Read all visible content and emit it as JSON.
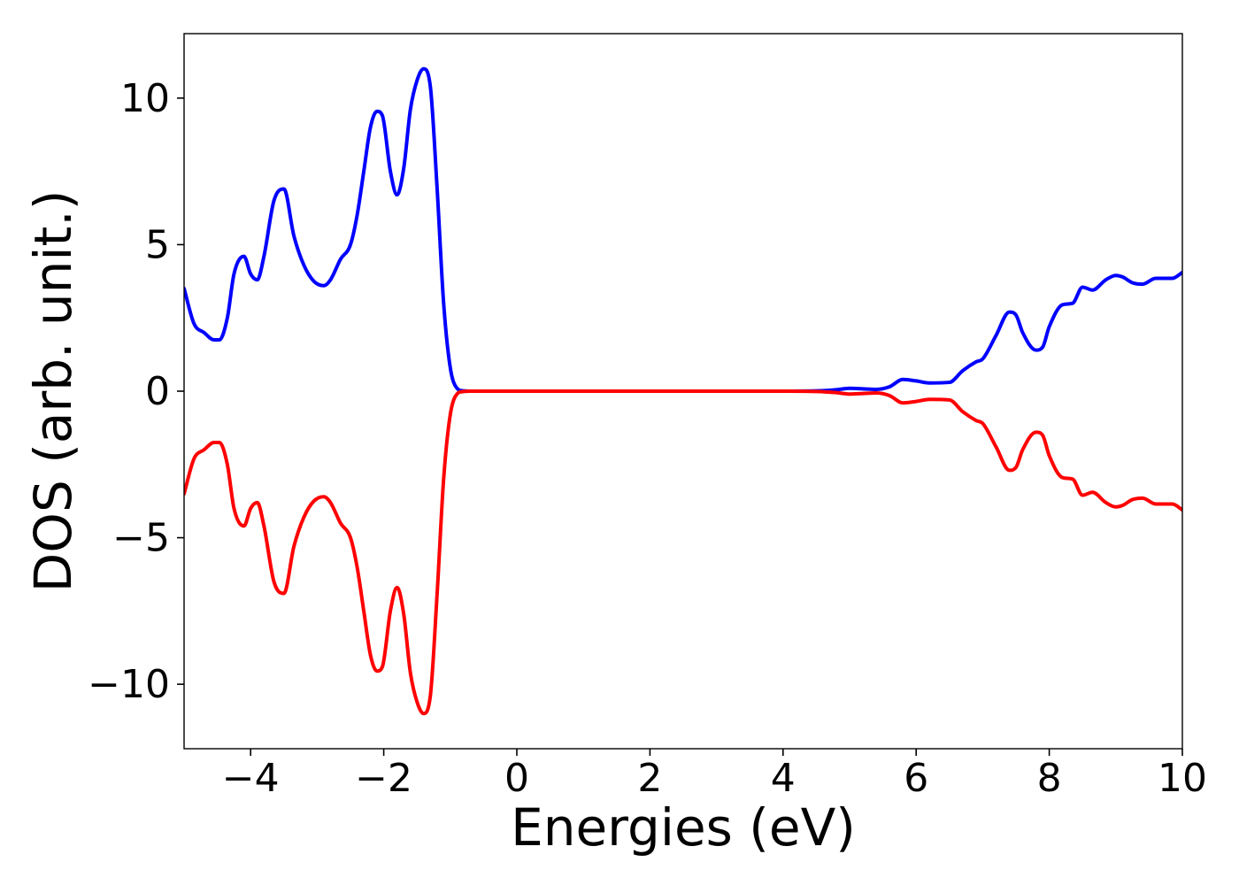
{
  "chart_data": {
    "type": "line",
    "title": "",
    "xlabel": "Energies (eV)",
    "ylabel": "DOS (arb. unit.)",
    "xlim": [
      -5,
      10
    ],
    "ylim": [
      -12.2,
      12.2
    ],
    "xticks": [
      -4,
      -2,
      0,
      2,
      4,
      6,
      8,
      10
    ],
    "xtick_labels": [
      "−4",
      "−2",
      "0",
      "2",
      "4",
      "6",
      "8",
      "10"
    ],
    "yticks": [
      -10,
      -5,
      0,
      5,
      10
    ],
    "ytick_labels": [
      "−10",
      "−5",
      "0",
      "5",
      "10"
    ],
    "grid": false,
    "legend": "none",
    "series": [
      {
        "color": "#0000ff",
        "x": [
          -5.0,
          -4.85,
          -4.7,
          -4.55,
          -4.47,
          -4.35,
          -4.25,
          -4.1,
          -4.0,
          -3.9,
          -3.8,
          -3.65,
          -3.5,
          -3.35,
          -3.2,
          -3.05,
          -2.9,
          -2.8,
          -2.65,
          -2.5,
          -2.4,
          -2.3,
          -2.2,
          -2.1,
          -2.02,
          -1.9,
          -1.8,
          -1.7,
          -1.6,
          -1.5,
          -1.4,
          -1.3,
          -1.2,
          -1.1,
          -1.0,
          -0.9,
          -0.8,
          -0.7,
          -0.6,
          -0.5,
          -0.3,
          0.0,
          1.0,
          2.0,
          3.0,
          4.0,
          4.5,
          4.8,
          5.0,
          5.2,
          5.4,
          5.6,
          5.8,
          6.0,
          6.2,
          6.5,
          6.7,
          6.9,
          7.0,
          7.2,
          7.4,
          7.5,
          7.6,
          7.8,
          7.9,
          8.0,
          8.2,
          8.35,
          8.5,
          8.65,
          8.85,
          9.0,
          9.1,
          9.25,
          9.4,
          9.6,
          9.85,
          10.0
        ],
        "y": [
          3.5,
          2.3,
          2.0,
          1.75,
          1.75,
          2.5,
          4.0,
          4.6,
          4.0,
          3.8,
          4.6,
          6.5,
          6.9,
          5.3,
          4.3,
          3.75,
          3.6,
          3.8,
          4.5,
          5.0,
          6.0,
          7.5,
          9.0,
          9.55,
          9.4,
          7.5,
          6.7,
          7.6,
          9.6,
          10.6,
          11.0,
          10.4,
          7.0,
          3.0,
          0.8,
          0.1,
          0.01,
          0.0,
          0.0,
          0.0,
          0.0,
          0.0,
          0.0,
          0.0,
          0.0,
          0.0,
          0.01,
          0.05,
          0.1,
          0.08,
          0.06,
          0.15,
          0.4,
          0.35,
          0.28,
          0.3,
          0.7,
          1.0,
          1.1,
          1.9,
          2.7,
          2.6,
          2.0,
          1.4,
          1.5,
          2.2,
          2.95,
          3.0,
          3.55,
          3.45,
          3.8,
          3.95,
          3.9,
          3.7,
          3.65,
          3.85,
          3.85,
          4.05
        ]
      },
      {
        "color": "#ff0000",
        "x": [
          -5.0,
          -4.85,
          -4.7,
          -4.55,
          -4.47,
          -4.35,
          -4.25,
          -4.1,
          -4.0,
          -3.9,
          -3.8,
          -3.65,
          -3.5,
          -3.35,
          -3.2,
          -3.05,
          -2.9,
          -2.8,
          -2.65,
          -2.5,
          -2.4,
          -2.3,
          -2.2,
          -2.1,
          -2.02,
          -1.9,
          -1.8,
          -1.7,
          -1.6,
          -1.5,
          -1.4,
          -1.3,
          -1.2,
          -1.1,
          -1.0,
          -0.9,
          -0.8,
          -0.7,
          -0.6,
          -0.5,
          -0.3,
          0.0,
          1.0,
          2.0,
          3.0,
          4.0,
          4.5,
          4.8,
          5.0,
          5.2,
          5.4,
          5.6,
          5.8,
          6.0,
          6.2,
          6.5,
          6.7,
          6.9,
          7.0,
          7.2,
          7.4,
          7.5,
          7.6,
          7.8,
          7.9,
          8.0,
          8.2,
          8.35,
          8.5,
          8.65,
          8.85,
          9.0,
          9.1,
          9.25,
          9.4,
          9.6,
          9.85,
          10.0
        ],
        "y": [
          -3.5,
          -2.3,
          -2.0,
          -1.75,
          -1.75,
          -2.5,
          -4.0,
          -4.6,
          -4.0,
          -3.8,
          -4.6,
          -6.5,
          -6.9,
          -5.3,
          -4.3,
          -3.75,
          -3.6,
          -3.8,
          -4.5,
          -5.0,
          -6.0,
          -7.5,
          -9.0,
          -9.55,
          -9.4,
          -7.5,
          -6.7,
          -7.6,
          -9.6,
          -10.6,
          -11.0,
          -10.4,
          -7.0,
          -3.0,
          -0.8,
          -0.1,
          -0.01,
          0.0,
          0.0,
          0.0,
          0.0,
          0.0,
          0.0,
          0.0,
          0.0,
          0.0,
          -0.01,
          -0.05,
          -0.1,
          -0.08,
          -0.06,
          -0.15,
          -0.4,
          -0.35,
          -0.28,
          -0.3,
          -0.7,
          -1.0,
          -1.1,
          -1.9,
          -2.7,
          -2.6,
          -2.0,
          -1.4,
          -1.5,
          -2.2,
          -2.95,
          -3.0,
          -3.55,
          -3.45,
          -3.8,
          -3.95,
          -3.9,
          -3.7,
          -3.65,
          -3.85,
          -3.85,
          -4.05
        ]
      }
    ]
  }
}
